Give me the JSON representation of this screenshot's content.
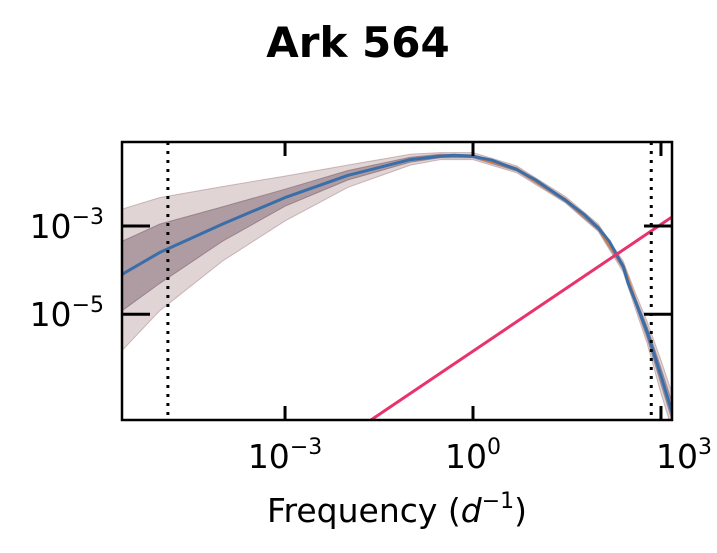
{
  "chart_data": {
    "type": "line",
    "title": "Ark 564",
    "xlabel": {
      "text": "Frequency (",
      "var": "d",
      "exp": "−1",
      "close": ")"
    },
    "ylabel": "",
    "xscale": "log",
    "yscale": "log",
    "xlim": [
      2.5e-06,
      1500
    ],
    "ylim": [
      4e-08,
      0.08
    ],
    "grid": false,
    "x_ticks": [
      {
        "value": 0.001,
        "base": "10",
        "exp": "−3"
      },
      {
        "value": 1,
        "base": "10",
        "exp": "0"
      },
      {
        "value": 1000,
        "base": "10",
        "exp": "3"
      }
    ],
    "y_ticks": [
      {
        "value": 0.001,
        "base": "10",
        "exp": "−3"
      },
      {
        "value": 1e-05,
        "base": "10",
        "exp": "−5"
      }
    ],
    "vlines": [
      {
        "x": 1.35e-05,
        "style": "dotted",
        "color": "#000000"
      },
      {
        "x": 700,
        "style": "dotted",
        "color": "#000000"
      }
    ],
    "series": [
      {
        "role": "psd-median",
        "color": "#3a6ea8",
        "x": [
          2.5e-06,
          1e-05,
          0.0001,
          0.001,
          0.01,
          0.1,
          0.3,
          0.5,
          1,
          2,
          5,
          10,
          30,
          60,
          100,
          150,
          250,
          300,
          400,
          600,
          1000,
          1500
        ],
        "y": [
          8e-05,
          0.00025,
          0.0011,
          0.0044,
          0.014,
          0.032,
          0.038,
          0.04,
          0.038,
          0.031,
          0.019,
          0.011,
          0.0038,
          0.0018,
          0.0009,
          0.00045,
          0.00012,
          5e-05,
          1.8e-05,
          4e-06,
          4e-07,
          6e-08
        ]
      },
      {
        "role": "psd-model-orange",
        "color": "#e07b39",
        "x": [
          0.3,
          1,
          5,
          30,
          100,
          250,
          400
        ],
        "y": [
          0.0385,
          0.0385,
          0.0193,
          0.0039,
          0.00092,
          0.000125,
          1.85e-05
        ]
      },
      {
        "role": "white-noise-line",
        "color": "#e8336d",
        "x": [
          0.0235,
          1500
        ],
        "y": [
          4e-08,
          0.0016
        ]
      }
    ],
    "bands": [
      {
        "role": "outer-95",
        "color": "#ad8f91",
        "opacity": 0.38,
        "x": [
          2.5e-06,
          1e-05,
          0.0001,
          0.001,
          0.01,
          0.1,
          0.3,
          1,
          5,
          30,
          100,
          250,
          400,
          600,
          1000,
          1500
        ],
        "lower": [
          1.5e-06,
          1.2e-05,
          0.00016,
          0.0013,
          0.0075,
          0.024,
          0.032,
          0.032,
          0.016,
          0.0033,
          0.00075,
          9e-05,
          1.2e-05,
          2.2e-06,
          1.6e-07,
          2.5e-08
        ],
        "upper": [
          0.0024,
          0.0044,
          0.0078,
          0.0135,
          0.024,
          0.042,
          0.046,
          0.046,
          0.023,
          0.0046,
          0.0011,
          0.00016,
          2.8e-05,
          6.8e-06,
          9e-07,
          1.6e-07
        ]
      },
      {
        "role": "inner-68",
        "color": "#7d6370",
        "opacity": 0.5,
        "x": [
          2.5e-06,
          1e-05,
          0.0001,
          0.001,
          0.01,
          0.1,
          0.3,
          1,
          5,
          30,
          100,
          250,
          400,
          600,
          1000,
          1500
        ],
        "lower": [
          1.2e-05,
          5e-05,
          0.00045,
          0.0028,
          0.011,
          0.028,
          0.035,
          0.035,
          0.0175,
          0.0035,
          0.0008,
          0.000105,
          1.5e-05,
          2.9e-06,
          2.6e-07,
          4e-08
        ],
        "upper": [
          0.00045,
          0.0011,
          0.0027,
          0.0068,
          0.018,
          0.036,
          0.042,
          0.041,
          0.021,
          0.0042,
          0.001,
          0.00014,
          2.2e-05,
          5.2e-06,
          6e-07,
          1e-07
        ]
      }
    ]
  }
}
